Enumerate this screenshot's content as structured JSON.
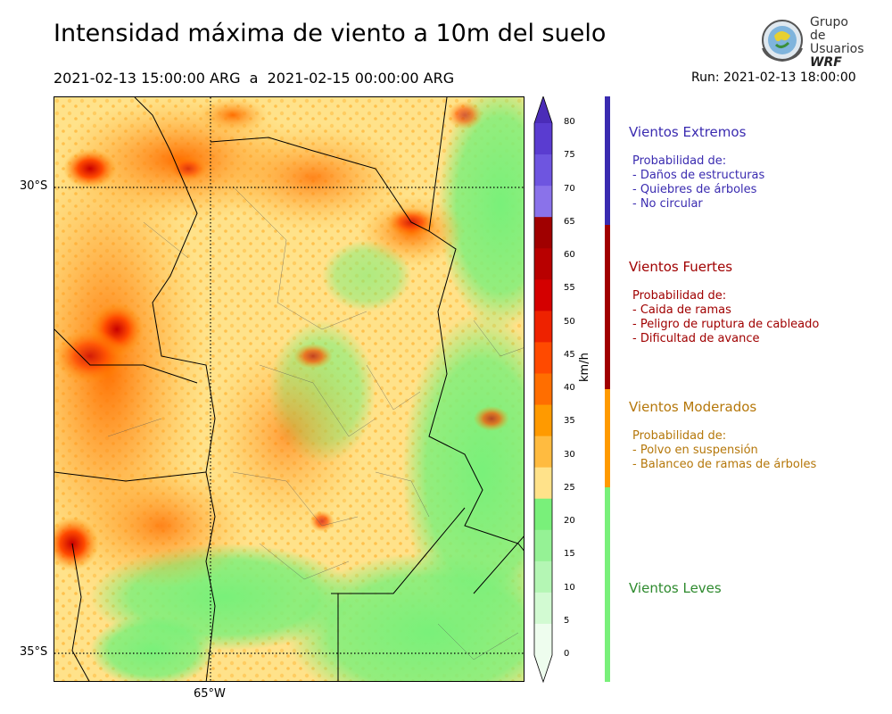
{
  "title": "Intensidad máxima de viento a 10m del suelo",
  "period": "2021-02-13 15:00:00 ARG  a  2021-02-15 00:00:00 ARG",
  "run": "Run: 2021-02-13 18:00:00",
  "logo": {
    "line1": "Grupo de",
    "line2": "Usuarios",
    "line3": "WRF"
  },
  "map": {
    "lat_labels": [
      "30°S",
      "35°S"
    ],
    "lon_labels": [
      "65°W"
    ]
  },
  "colorbar": {
    "unit": "km/h",
    "ticks": [
      "80",
      "75",
      "70",
      "65",
      "60",
      "55",
      "50",
      "45",
      "40",
      "35",
      "30",
      "25",
      "20",
      "15",
      "10",
      "5",
      "0"
    ],
    "colors": [
      "#4b2cb8",
      "#5a3cd0",
      "#6e55e0",
      "#8a72ea",
      "#a00000",
      "#b80000",
      "#d40000",
      "#ee2200",
      "#ff4a00",
      "#ff6e00",
      "#ff9a00",
      "#ffbb40",
      "#ffe28a",
      "#79f07a",
      "#95f295",
      "#b4f6b4",
      "#d2fad2",
      "#eefdee"
    ]
  },
  "legend": [
    {
      "title": "Vientos Extremos",
      "color": "#3a2bb0",
      "lines": [
        "Probabilidad de:",
        "- Daños de estructuras",
        "- Quiebres de árboles",
        "- No circular"
      ]
    },
    {
      "title": "Vientos Fuertes",
      "color": "#a00000",
      "lines": [
        "Probabilidad de:",
        "- Caida de ramas",
        "- Peligro de ruptura de cableado",
        "- Dificultad de avance"
      ]
    },
    {
      "title": "Vientos Moderados",
      "color": "#b5770a",
      "lines": [
        "Probabilidad de:",
        "- Polvo en suspensión",
        "- Balanceo de ramas de árboles"
      ]
    },
    {
      "title": "Vientos Leves",
      "color": "#2e8a2e",
      "lines": []
    }
  ]
}
